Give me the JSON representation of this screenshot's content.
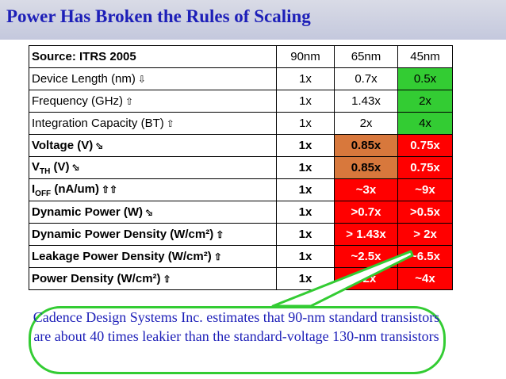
{
  "slide": {
    "title": "Power Has Broken the Rules of Scaling"
  },
  "table": {
    "header": {
      "source": "Source: ITRS 2005",
      "cols": [
        "90nm",
        "65nm",
        "45nm"
      ]
    },
    "rows": [
      {
        "label": "Device Length (nm)",
        "arrow": "⇩",
        "v90": "1x",
        "v65": "0.7x",
        "v45": "0.5x"
      },
      {
        "label": "Frequency (GHz)",
        "arrow": "⇧",
        "v90": "1x",
        "v65": "1.43x",
        "v45": "2x"
      },
      {
        "label": "Integration Capacity (BT)",
        "arrow": "⇧",
        "v90": "1x",
        "v65": "2x",
        "v45": "4x"
      },
      {
        "label": "Voltage (V)",
        "arrow": "⬂",
        "v90": "1x",
        "v65": "0.85x",
        "v45": "0.75x"
      },
      {
        "label_main": "V",
        "label_sub": "TH",
        "label_rest": " (V)",
        "arrow": "⬂",
        "v90": "1x",
        "v65": "0.85x",
        "v45": "0.75x"
      },
      {
        "label_main": "I",
        "label_sub": "OFF",
        "label_rest": " (nA/um)",
        "arrow": "⇧⇧",
        "v90": "1x",
        "v65": "~3x",
        "v45": "~9x"
      },
      {
        "label": "Dynamic Power (W)",
        "arrow": "⬂",
        "v90": "1x",
        "v65": ">0.7x",
        "v45": ">0.5x"
      },
      {
        "label": "Dynamic Power Density (W/cm²)",
        "arrow": "⇧",
        "v90": "1x",
        "v65": "> 1.43x",
        "v45": "> 2x"
      },
      {
        "label": "Leakage Power Density (W/cm²)",
        "arrow": "⇧",
        "v90": "1x",
        "v65": "~2.5x",
        "v45": "~6.5x"
      },
      {
        "label": "Power Density (W/cm²)",
        "arrow": "⇧",
        "v90": "1x",
        "v65": "~2x",
        "v45": "~4x"
      }
    ]
  },
  "callout": {
    "text": "Cadence Design Systems Inc. estimates that 90-nm standard transistors are about 40 times leakier than the standard-voltage 130-nm transistors"
  },
  "colors": {
    "title": "#1d1fb8",
    "green": "#33cc33",
    "orange": "#d8783c",
    "red": "#ff0000"
  }
}
